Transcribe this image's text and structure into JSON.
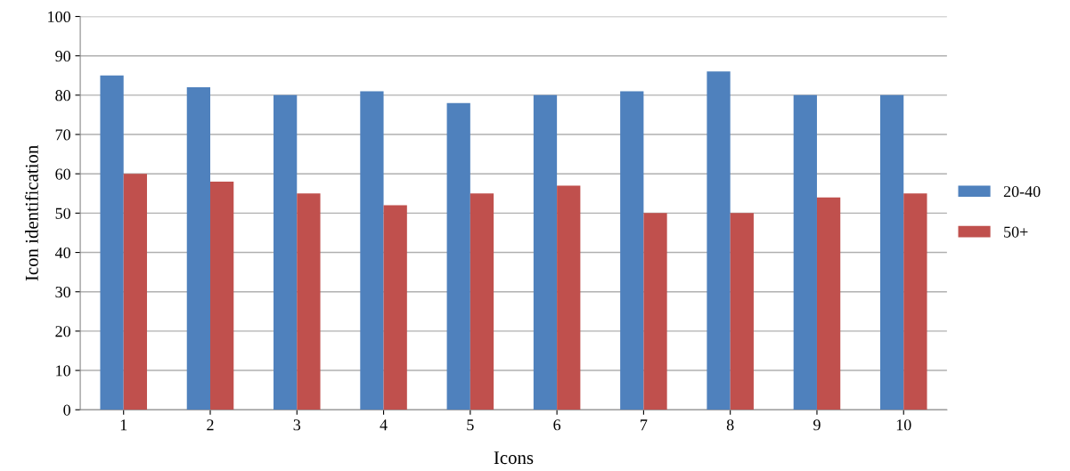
{
  "chart_data": {
    "type": "bar",
    "xlabel": "Icons",
    "ylabel": "Icon identification",
    "categories": [
      "1",
      "2",
      "3",
      "4",
      "5",
      "6",
      "7",
      "8",
      "9",
      "10"
    ],
    "series": [
      {
        "name": "20-40",
        "color": "#4f81bd",
        "values": [
          85,
          82,
          80,
          81,
          78,
          80,
          81,
          86,
          80,
          80
        ]
      },
      {
        "name": "50+",
        "color": "#c0504d",
        "values": [
          60,
          58,
          55,
          52,
          55,
          57,
          50,
          50,
          54,
          55
        ]
      }
    ],
    "ylim": [
      0,
      100
    ],
    "yticks": [
      0,
      10,
      20,
      30,
      40,
      50,
      60,
      70,
      80,
      90,
      100
    ],
    "grid": "y",
    "legend": "right"
  }
}
